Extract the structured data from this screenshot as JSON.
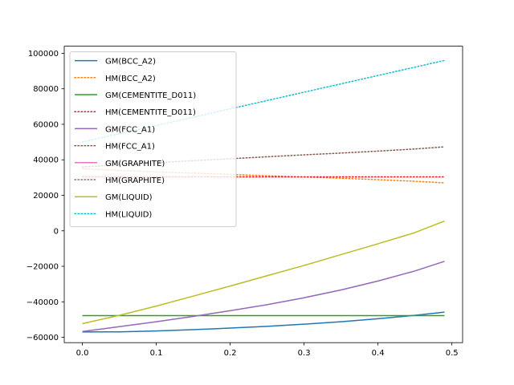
{
  "chart_data": {
    "type": "line",
    "title": "",
    "xlabel": "",
    "ylabel": "",
    "xlim": [
      -0.0245,
      0.5145
    ],
    "ylim": [
      -63000,
      104000
    ],
    "xticks": [
      0.0,
      0.1,
      0.2,
      0.3,
      0.4,
      0.5
    ],
    "xtick_labels": [
      "0.0",
      "0.1",
      "0.2",
      "0.3",
      "0.4",
      "0.5"
    ],
    "yticks": [
      -60000,
      -40000,
      -20000,
      0,
      20000,
      40000,
      60000,
      80000,
      100000
    ],
    "ytick_labels": [
      "−60000",
      "−40000",
      "−20000",
      "0",
      "20000",
      "40000",
      "60000",
      "80000",
      "100000"
    ],
    "grid": false,
    "legend_placement": "upper-left",
    "x": [
      0.0,
      0.05,
      0.1,
      0.15,
      0.2,
      0.25,
      0.3,
      0.35,
      0.4,
      0.45,
      0.49
    ],
    "series": [
      {
        "name": "GM(BCC_A2)",
        "style": "solid",
        "color": "#1f77b4",
        "values": [
          -57000,
          -56900,
          -56400,
          -55700,
          -54800,
          -53800,
          -52600,
          -51200,
          -49500,
          -47600,
          -45800
        ]
      },
      {
        "name": "HM(BCC_A2)",
        "style": "dotted",
        "color": "#ff7f0e",
        "values": [
          35000,
          34000,
          33200,
          32500,
          31800,
          31000,
          30300,
          29600,
          28800,
          27900,
          27000
        ]
      },
      {
        "name": "GM(CEMENTITE_D011)",
        "style": "solid",
        "color": "#2ca02c",
        "values": [
          -47800,
          -47800,
          -47800,
          -47800,
          -47800,
          -47800,
          -47800,
          -47800,
          -47800,
          -47800,
          -47800
        ]
      },
      {
        "name": "HM(CEMENTITE_D011)",
        "style": "dotted",
        "color": "#d62728",
        "values": [
          30400,
          30400,
          30400,
          30400,
          30400,
          30400,
          30400,
          30400,
          30400,
          30400,
          30400
        ]
      },
      {
        "name": "GM(FCC_A1)",
        "style": "solid",
        "color": "#9467bd",
        "values": [
          -56700,
          -54000,
          -51200,
          -48200,
          -45000,
          -41600,
          -37700,
          -33300,
          -28300,
          -22600,
          -17200
        ]
      },
      {
        "name": "HM(FCC_A1)",
        "style": "dotted",
        "color": "#8c564b",
        "values": [
          36000,
          37200,
          38400,
          39500,
          40600,
          41700,
          42800,
          43800,
          44900,
          46100,
          47300
        ]
      },
      {
        "name": "GM(GRAPHITE)",
        "style": "solid",
        "color": "#e377c2",
        "values": [
          null,
          null,
          null,
          null,
          null,
          null,
          null,
          null,
          null,
          null,
          null
        ]
      },
      {
        "name": "HM(GRAPHITE)",
        "style": "dotted",
        "color": "#7f7f7f",
        "values": [
          null,
          null,
          null,
          null,
          null,
          null,
          null,
          null,
          null,
          null,
          null
        ]
      },
      {
        "name": "GM(LIQUID)",
        "style": "solid",
        "color": "#bcbd22",
        "values": [
          -52300,
          -47600,
          -42400,
          -36800,
          -31100,
          -25300,
          -19500,
          -13400,
          -7300,
          -1000,
          5500
        ]
      },
      {
        "name": "HM(LIQUID)",
        "style": "dotted",
        "color": "#17becf",
        "values": [
          50000,
          54700,
          59300,
          64000,
          68700,
          73400,
          78100,
          82800,
          87500,
          92200,
          96000
        ]
      }
    ]
  }
}
